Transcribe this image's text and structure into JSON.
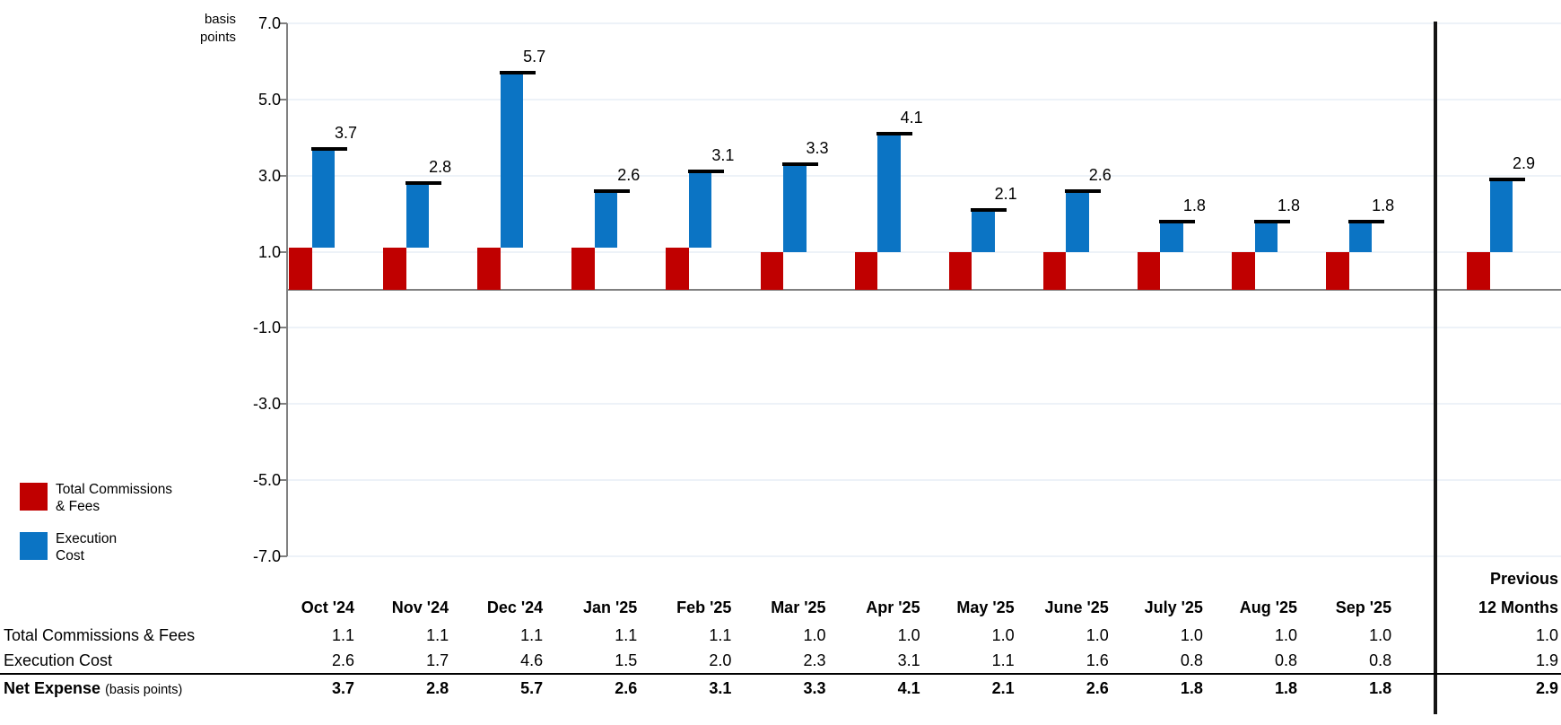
{
  "chart": {
    "y_axis_unit": [
      "basis",
      "points"
    ],
    "y_ticks": [
      "7.0",
      "5.0",
      "3.0",
      "1.0",
      "-1.0",
      "-3.0",
      "-5.0",
      "-7.0"
    ],
    "colors": {
      "commissions_red": "#C00000",
      "execution_blue": "#0B74C4",
      "net_marker_black": "#000000",
      "gridline": "#EDF2F8",
      "zero_line_gray": "#7F7F7F"
    },
    "legend": [
      {
        "label_lines": [
          "Total Commissions",
          "& Fees"
        ],
        "color": "#C00000"
      },
      {
        "label_lines": [
          "Execution",
          "Cost"
        ],
        "color": "#0B74C4"
      }
    ]
  },
  "chart_data": {
    "type": "bar",
    "subtype": "stacked-waterfall-with-total-markers",
    "title": "",
    "y_unit_label": "basis points",
    "categories": [
      "Oct '24",
      "Nov '24",
      "Dec '24",
      "Jan '25",
      "Feb '25",
      "Mar '25",
      "Apr '25",
      "May '25",
      "June '25",
      "July '25",
      "Aug '25",
      "Sep '25",
      "Previous 12 Months"
    ],
    "series": [
      {
        "name": "Total Commissions & Fees",
        "color": "#C00000",
        "values": [
          1.1,
          1.1,
          1.1,
          1.1,
          1.1,
          1.0,
          1.0,
          1.0,
          1.0,
          1.0,
          1.0,
          1.0,
          1.0
        ]
      },
      {
        "name": "Execution Cost",
        "color": "#0B74C4",
        "values": [
          2.6,
          1.7,
          4.6,
          1.5,
          2.0,
          2.3,
          3.1,
          1.1,
          1.6,
          0.8,
          0.8,
          0.8,
          1.9
        ]
      }
    ],
    "totals": [
      3.7,
      2.8,
      5.7,
      2.6,
      3.1,
      3.3,
      4.1,
      2.1,
      2.6,
      1.8,
      1.8,
      1.8,
      2.9
    ],
    "total_labels": [
      "3.7",
      "2.8",
      "5.7",
      "2.6",
      "3.1",
      "3.3",
      "4.1",
      "2.1",
      "2.6",
      "1.8",
      "1.8",
      "1.8",
      "2.9"
    ],
    "ylim": [
      -7.0,
      7.0
    ],
    "y_tick_values": [
      7,
      5,
      3,
      1,
      -1,
      -3,
      -5,
      -7
    ],
    "grid": true,
    "legend_position": "bottom-left",
    "separator_before_category": "Previous 12 Months"
  },
  "table": {
    "row_labels": {
      "commissions": "Total Commissions & Fees",
      "execution": "Execution Cost",
      "net_bold": "Net Expense",
      "net_suffix": "(basis points)"
    },
    "columns": [
      {
        "header_lines": [
          "Oct '24"
        ],
        "commissions": "1.1",
        "execution": "2.6",
        "net": "3.7"
      },
      {
        "header_lines": [
          "Nov '24"
        ],
        "commissions": "1.1",
        "execution": "1.7",
        "net": "2.8"
      },
      {
        "header_lines": [
          "Dec '24"
        ],
        "commissions": "1.1",
        "execution": "4.6",
        "net": "5.7"
      },
      {
        "header_lines": [
          "Jan '25"
        ],
        "commissions": "1.1",
        "execution": "1.5",
        "net": "2.6"
      },
      {
        "header_lines": [
          "Feb '25"
        ],
        "commissions": "1.1",
        "execution": "2.0",
        "net": "3.1"
      },
      {
        "header_lines": [
          "Mar '25"
        ],
        "commissions": "1.0",
        "execution": "2.3",
        "net": "3.3"
      },
      {
        "header_lines": [
          "Apr '25"
        ],
        "commissions": "1.0",
        "execution": "3.1",
        "net": "4.1"
      },
      {
        "header_lines": [
          "May '25"
        ],
        "commissions": "1.0",
        "execution": "1.1",
        "net": "2.1"
      },
      {
        "header_lines": [
          "June '25"
        ],
        "commissions": "1.0",
        "execution": "1.6",
        "net": "2.6"
      },
      {
        "header_lines": [
          "July '25"
        ],
        "commissions": "1.0",
        "execution": "0.8",
        "net": "1.8"
      },
      {
        "header_lines": [
          "Aug '25"
        ],
        "commissions": "1.0",
        "execution": "0.8",
        "net": "1.8"
      },
      {
        "header_lines": [
          "Sep '25"
        ],
        "commissions": "1.0",
        "execution": "0.8",
        "net": "1.8"
      },
      {
        "header_lines": [
          "Previous",
          "12 Months"
        ],
        "commissions": "1.0",
        "execution": "1.9",
        "net": "2.9"
      }
    ]
  }
}
